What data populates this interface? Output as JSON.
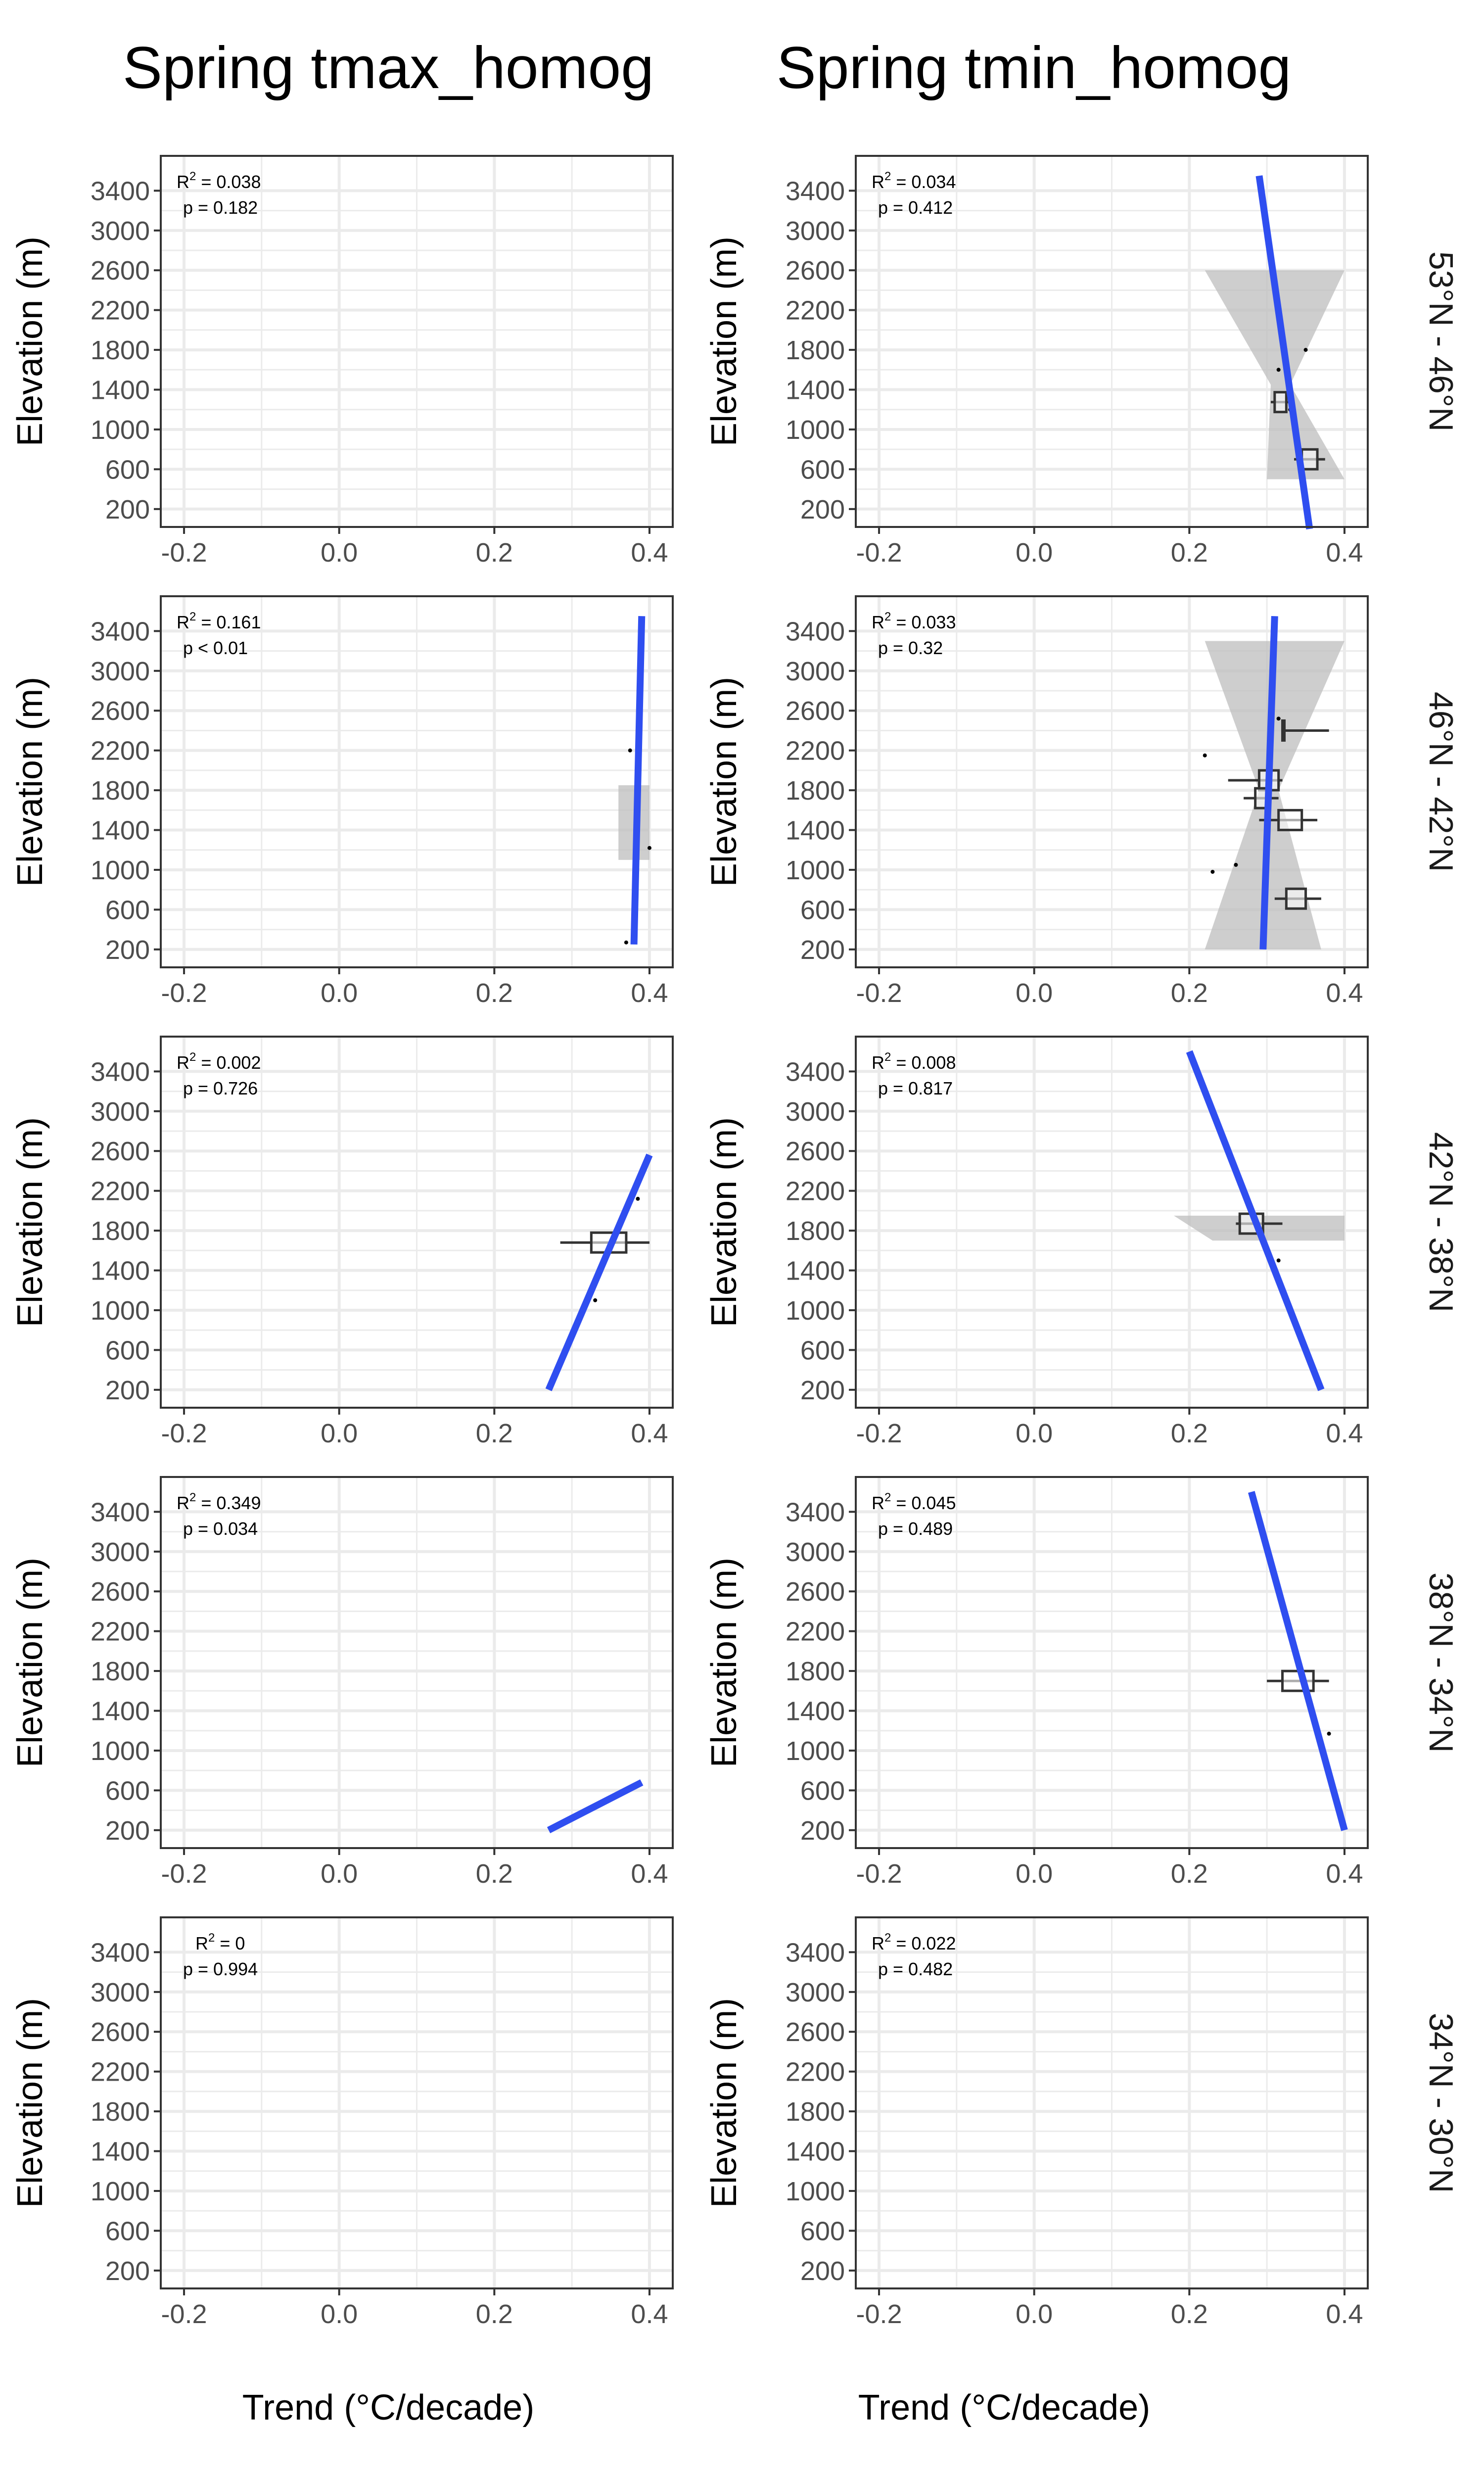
{
  "figure": {
    "column_titles": [
      "Spring tmax_homog",
      "Spring tmin_homog"
    ],
    "row_labels": [
      "53°N - 46°N",
      "46°N - 42°N",
      "42°N - 38°N",
      "38°N - 34°N",
      "34°N - 30°N"
    ],
    "x_axis_label": "Trend (°C/decade)",
    "y_axis_label": "Elevation (m)",
    "colors": {
      "line": "#2f4ef0",
      "ribbon": "#bdbdbd",
      "grid": "#ebebeb",
      "panel_border": "#333333"
    }
  },
  "chart_data": {
    "type": "scatter",
    "xlim": [
      -0.23,
      0.43
    ],
    "ylim": [
      20,
      3750
    ],
    "x_ticks": [
      -0.2,
      0.0,
      0.2,
      0.4
    ],
    "x_tick_labels": [
      "-0.2",
      "0.0",
      "0.2",
      "0.4"
    ],
    "y_ticks": [
      200,
      600,
      1000,
      1400,
      1800,
      2200,
      2600,
      3000,
      3400
    ],
    "y_tick_labels": [
      "200",
      "600",
      "1000",
      "1400",
      "1800",
      "2200",
      "2600",
      "3000",
      "3400"
    ],
    "grid": true,
    "panels": [
      {
        "row": 0,
        "col": 0,
        "r2": "0.038",
        "p": "0.182",
        "fit": null,
        "ribbon": null,
        "points": [],
        "boxes": []
      },
      {
        "row": 0,
        "col": 1,
        "r2": "0.034",
        "p": "0.412",
        "fit": [
          [
            0.29,
            3550
          ],
          [
            0.355,
            0
          ]
        ],
        "ribbon": [
          [
            0.22,
            0.4,
            2600
          ],
          [
            0.305,
            0.33,
            1450
          ],
          [
            0.3,
            0.4,
            500
          ]
        ],
        "points": [
          [
            0.35,
            1800
          ],
          [
            0.315,
            1600
          ],
          [
            0.33,
            1200
          ]
        ],
        "boxes": [
          {
            "y": 1275,
            "x0": 0.305,
            "x1": 0.33,
            "q0": 0.31,
            "q1": 0.325
          },
          {
            "y": 700,
            "x0": 0.335,
            "x1": 0.375,
            "q0": 0.345,
            "q1": 0.365
          }
        ]
      },
      {
        "row": 1,
        "col": 0,
        "r2": "0.161",
        "p": "< 0.01",
        "fit": [
          [
            0.39,
            3550
          ],
          [
            0.38,
            250
          ]
        ],
        "ribbon": [
          [
            0.36,
            0.4,
            1850
          ],
          [
            0.36,
            0.4,
            1100
          ]
        ],
        "points": [
          [
            0.375,
            2200
          ],
          [
            0.4,
            1220
          ],
          [
            0.37,
            270
          ]
        ],
        "boxes": []
      },
      {
        "row": 1,
        "col": 1,
        "r2": "0.033",
        "p": "0.32",
        "fit": [
          [
            0.31,
            3550
          ],
          [
            0.295,
            200
          ]
        ],
        "ribbon": [
          [
            0.22,
            0.4,
            3300
          ],
          [
            0.29,
            0.315,
            1800
          ],
          [
            0.22,
            0.37,
            200
          ]
        ],
        "points": [
          [
            0.22,
            2150
          ],
          [
            0.26,
            1050
          ],
          [
            0.23,
            980
          ],
          [
            0.315,
            2520
          ]
        ],
        "boxes": [
          {
            "y": 2400,
            "x0": 0.32,
            "x1": 0.38,
            "q0": 0.32,
            "q1": 0.32
          },
          {
            "y": 1900,
            "x0": 0.25,
            "x1": 0.32,
            "q0": 0.29,
            "q1": 0.315
          },
          {
            "y": 1720,
            "x0": 0.27,
            "x1": 0.315,
            "q0": 0.285,
            "q1": 0.3
          },
          {
            "y": 1500,
            "x0": 0.29,
            "x1": 0.365,
            "q0": 0.315,
            "q1": 0.345
          },
          {
            "y": 710,
            "x0": 0.31,
            "x1": 0.37,
            "q0": 0.325,
            "q1": 0.35
          }
        ]
      },
      {
        "row": 2,
        "col": 0,
        "r2": "0.002",
        "p": "0.726",
        "fit": [
          [
            0.27,
            200
          ],
          [
            0.4,
            2560
          ]
        ],
        "ribbon": null,
        "points": [
          [
            0.385,
            2120
          ],
          [
            0.33,
            1100
          ]
        ],
        "boxes": [
          {
            "y": 1680,
            "x0": 0.285,
            "x1": 0.4,
            "q0": 0.325,
            "q1": 0.37
          }
        ]
      },
      {
        "row": 2,
        "col": 1,
        "r2": "0.008",
        "p": "0.817",
        "fit": [
          [
            0.2,
            3600
          ],
          [
            0.37,
            200
          ]
        ],
        "ribbon": [
          [
            0.18,
            0.4,
            1950
          ],
          [
            0.23,
            0.4,
            1700
          ]
        ],
        "points": [
          [
            0.315,
            1500
          ]
        ],
        "boxes": [
          {
            "y": 1870,
            "x0": 0.26,
            "x1": 0.32,
            "q0": 0.265,
            "q1": 0.295
          }
        ]
      },
      {
        "row": 3,
        "col": 0,
        "r2": "0.349",
        "p": "0.034",
        "fit": [
          [
            0.27,
            200
          ],
          [
            0.39,
            680
          ]
        ],
        "ribbon": null,
        "points": [],
        "boxes": []
      },
      {
        "row": 3,
        "col": 1,
        "r2": "0.045",
        "p": "0.489",
        "fit": [
          [
            0.28,
            3600
          ],
          [
            0.4,
            200
          ]
        ],
        "ribbon": null,
        "points": [
          [
            0.38,
            1170
          ]
        ],
        "boxes": [
          {
            "y": 1700,
            "x0": 0.3,
            "x1": 0.38,
            "q0": 0.32,
            "q1": 0.36
          }
        ]
      },
      {
        "row": 4,
        "col": 0,
        "r2": "0",
        "p": "0.994",
        "fit": null,
        "ribbon": null,
        "points": [],
        "boxes": []
      },
      {
        "row": 4,
        "col": 1,
        "r2": "0.022",
        "p": "0.482",
        "fit": null,
        "ribbon": null,
        "points": [],
        "boxes": []
      }
    ]
  }
}
